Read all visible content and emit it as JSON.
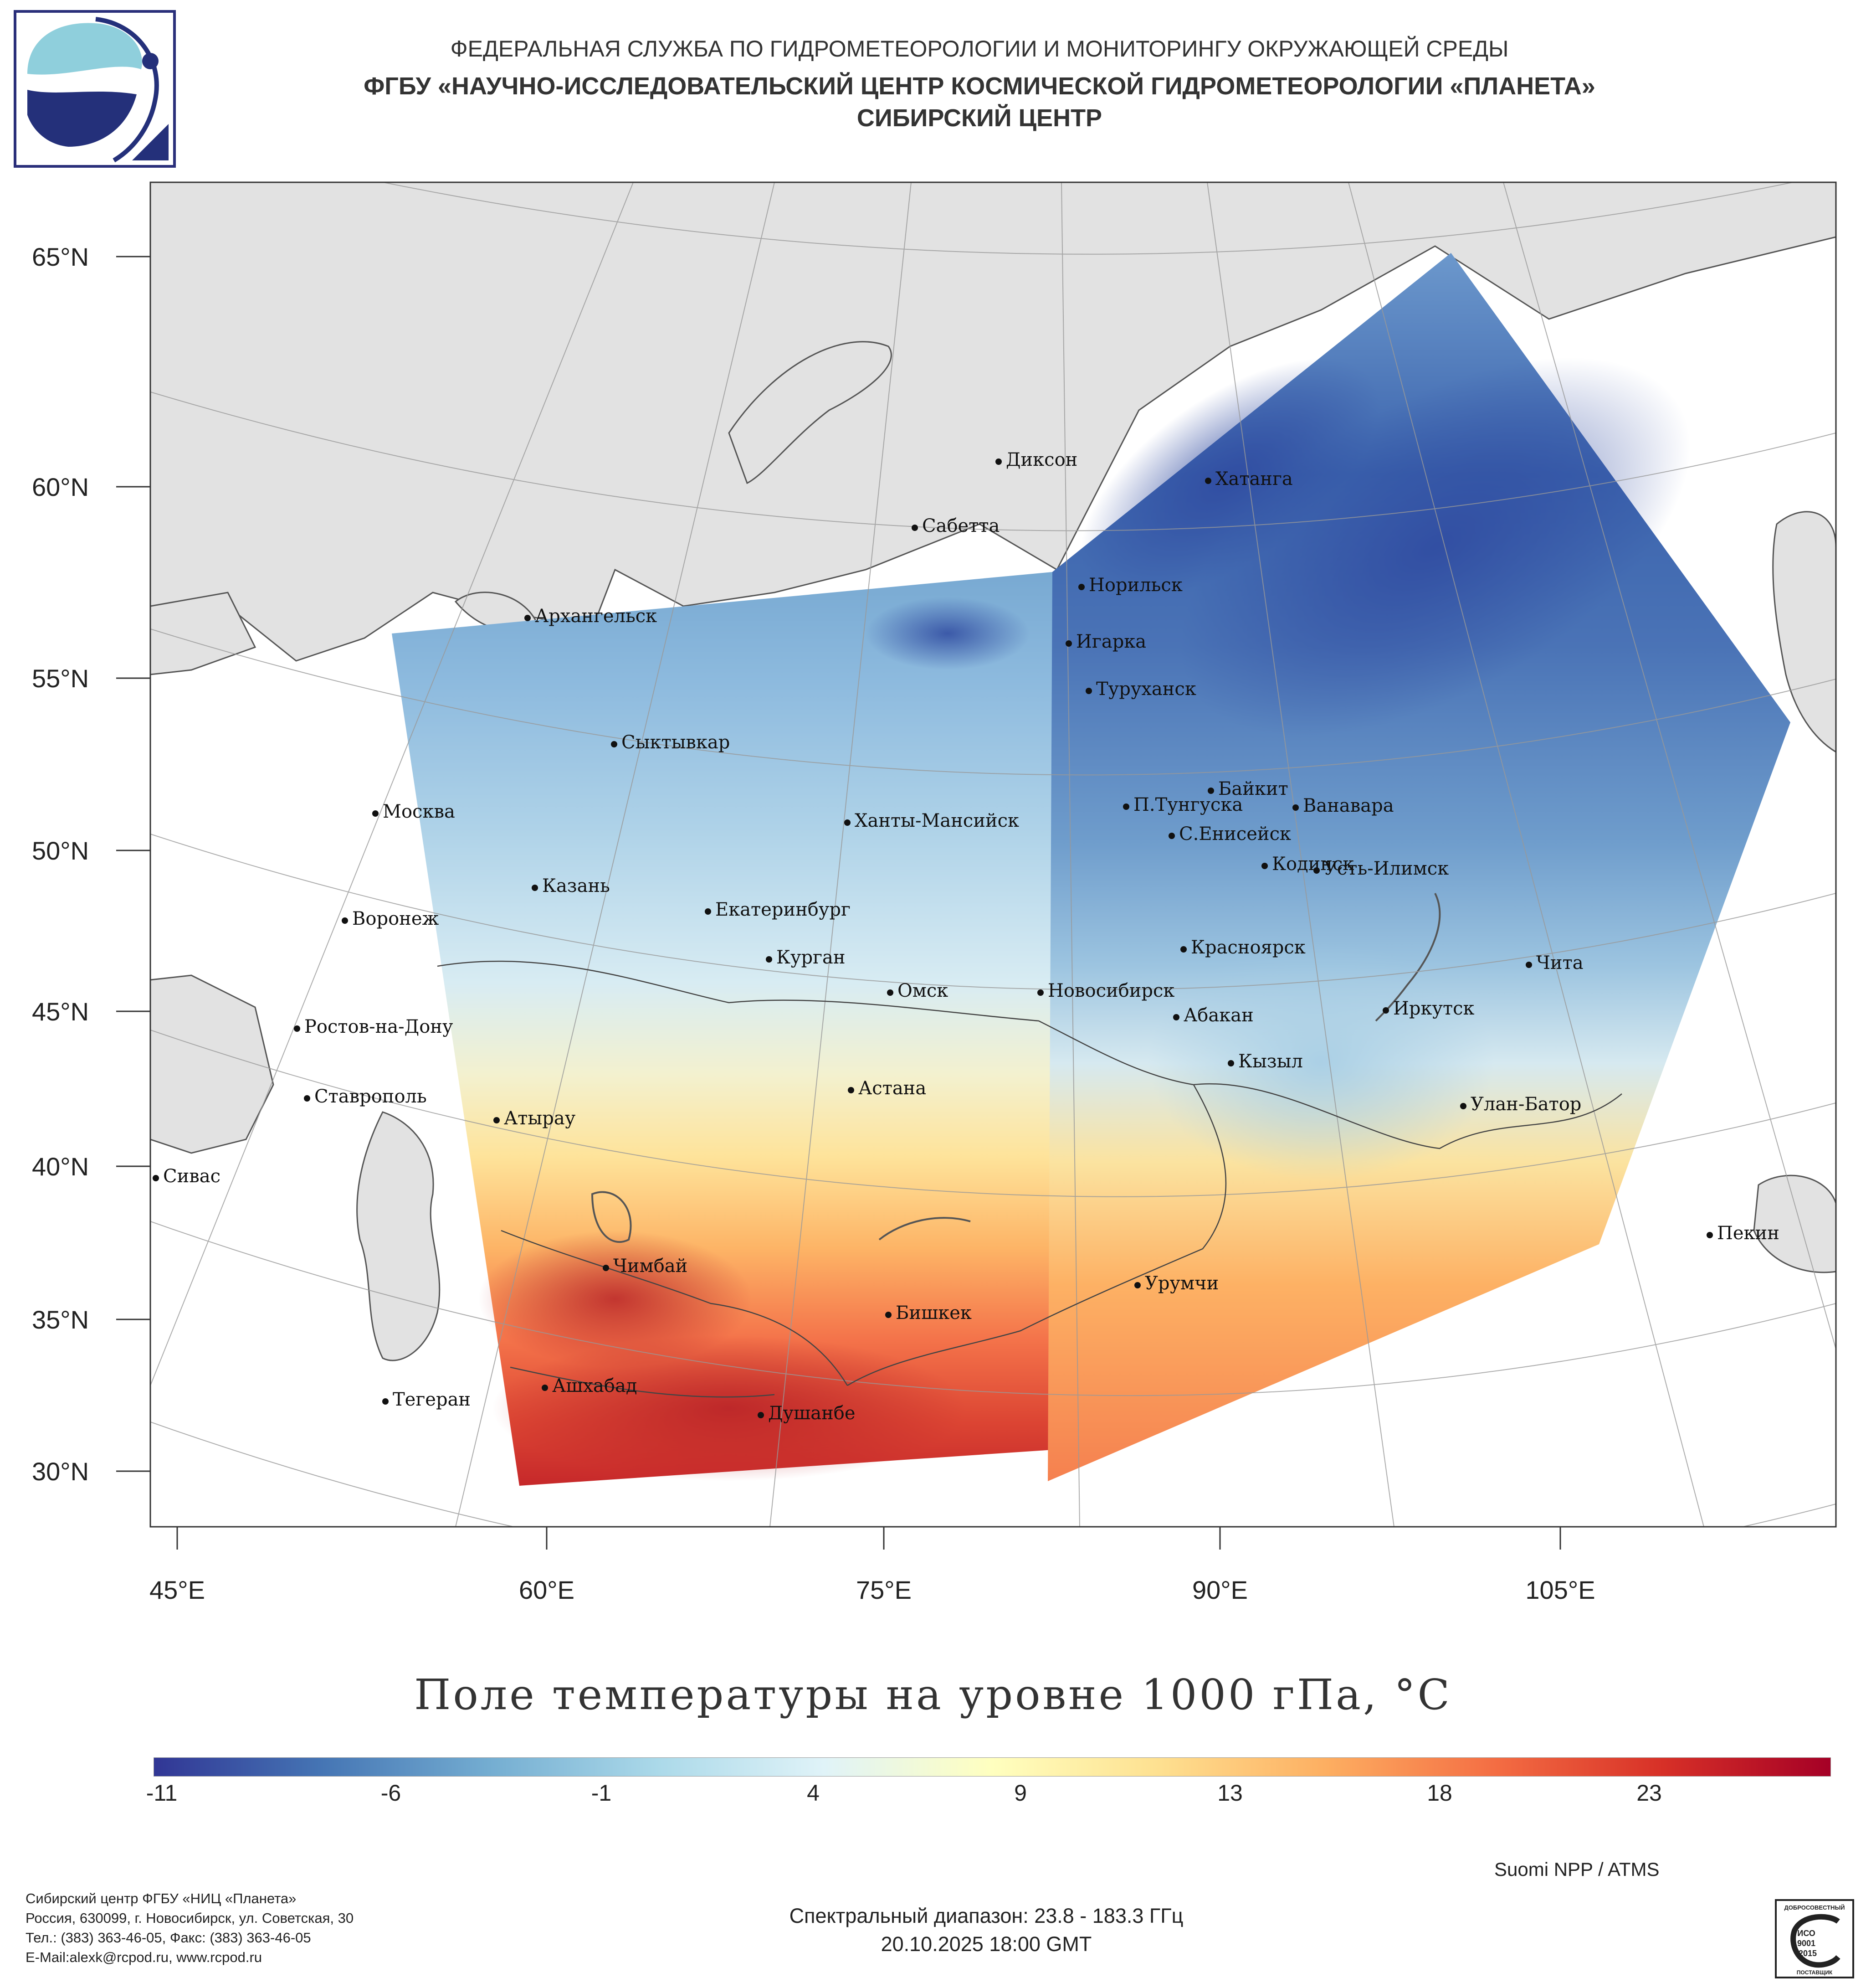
{
  "header": {
    "line1": "ФЕДЕРАЛЬНАЯ СЛУЖБА ПО ГИДРОМЕТЕОРОЛОГИИ И МОНИТОРИНГУ ОКРУЖАЮЩЕЙ СРЕДЫ",
    "line2": "ФГБУ «НАУЧНО-ИССЛЕДОВАТЕЛЬСКИЙ ЦЕНТР КОСМИЧЕСКОЙ ГИДРОМЕТЕОРОЛОГИИ «ПЛАНЕТА»",
    "line3": "СИБИРСКИЙ ЦЕНТР"
  },
  "map": {
    "lat_labels": [
      "65°N",
      "60°N",
      "55°N",
      "50°N",
      "45°N",
      "40°N",
      "35°N",
      "30°N"
    ],
    "lon_labels": [
      "45°E",
      "60°E",
      "75°E",
      "90°E",
      "105°E"
    ],
    "cities": [
      "Диксон",
      "Хатанга",
      "Сабетта",
      "Норильск",
      "Архангельск",
      "Игарка",
      "Туруханск",
      "Сыктывкар",
      "Байкит",
      "Москва",
      "П.Тунгуска",
      "Ванавара",
      "Ханты-Мансийск",
      "С.Енисейск",
      "Кодинск",
      "Усть-Илимск",
      "Казань",
      "Екатеринбург",
      "Воронеж",
      "Красноярск",
      "Курган",
      "Чита",
      "Омск",
      "Новосибирск",
      "Ростов-на-Дону",
      "Иркутск",
      "Абакан",
      "Кызыл",
      "Ставрополь",
      "Астана",
      "Улан-Батор",
      "Атырау",
      "Сивас",
      "Пекин",
      "Чимбай",
      "Урумчи",
      "Бишкек",
      "Ашхабад",
      "Тегеран",
      "Душанбе"
    ]
  },
  "colorbar": {
    "title": "Поле температуры на уровне 1000 гПа, °C",
    "ticks": [
      "-11",
      "-6",
      "-1",
      "4",
      "9",
      "13",
      "18",
      "23"
    ],
    "colors": [
      "#313695",
      "#4575b4",
      "#74add1",
      "#abd9e9",
      "#e0f3f8",
      "#ffffbf",
      "#fee090",
      "#fdae61",
      "#f46d43",
      "#d73027",
      "#a50026"
    ]
  },
  "footer": {
    "satellite": "Suomi NPP / ATMS",
    "address": [
      "Сибирский центр ФГБУ «НИЦ «Планета»",
      "Россия, 630099, г. Новосибирск, ул. Советская, 30",
      "Тел.: (383) 363-46-05, Факс: (383) 363-46-05",
      "E-Mail:alexk@rcpod.ru, www.rcpod.ru"
    ],
    "spectral": "Спектральный диапазон: 23.8 - 183.3 ГГц",
    "datetime": "20.10.2025 18:00 GMT",
    "iso": {
      "top": "ДОБРОСОВЕСТНЫЙ",
      "l1": "ИСО",
      "l2": "9001",
      "l3": "-2015",
      "bottom": "ПОСТАВЩИК"
    }
  }
}
